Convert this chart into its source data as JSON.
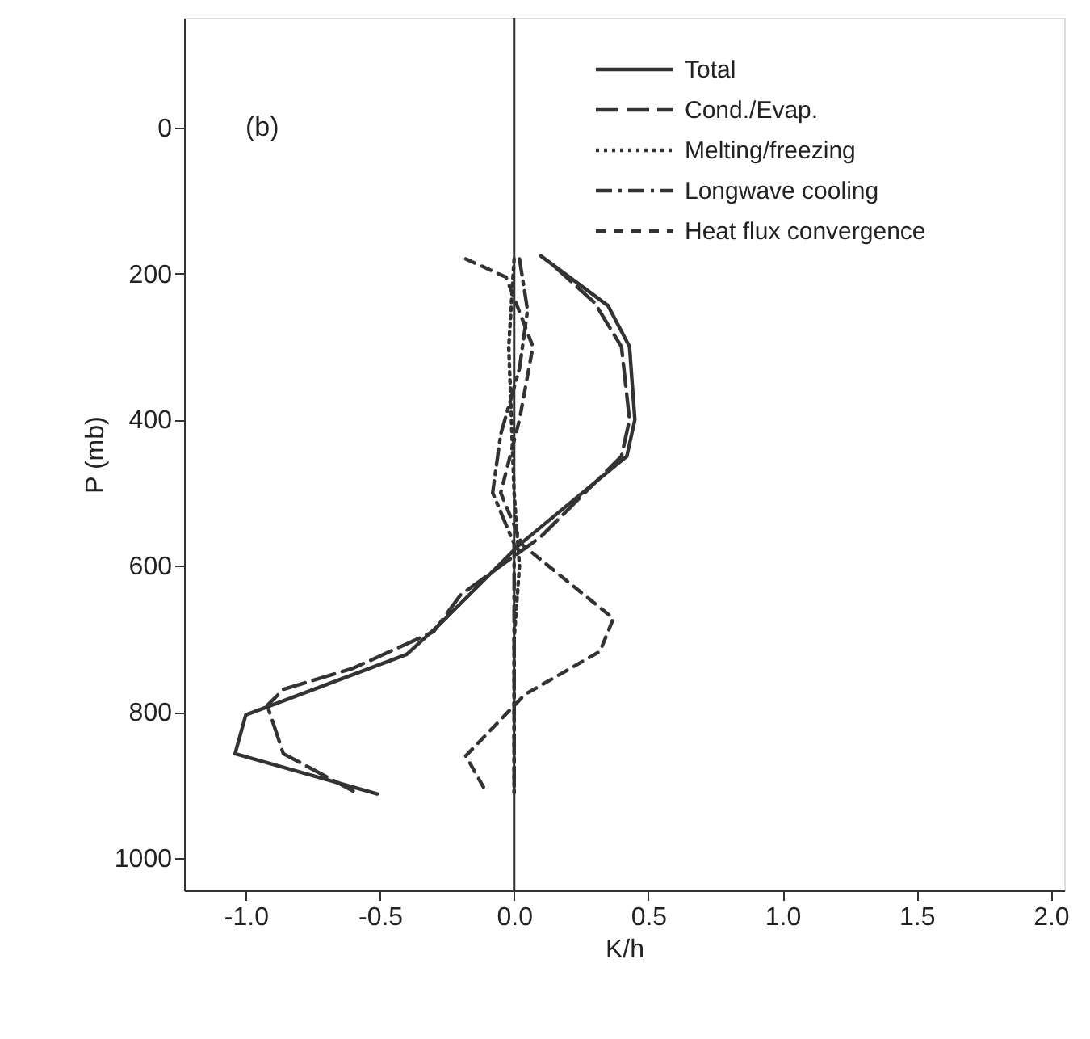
{
  "chart_data": {
    "type": "line",
    "xlabel": "K/h",
    "ylabel": "P (mb)",
    "annotations": [
      "(b)"
    ],
    "xlim": [
      -1.23,
      2.05
    ],
    "ylim": [
      1044,
      -150
    ],
    "xticks": [
      {
        "value": -1.0,
        "label": "-1.0"
      },
      {
        "value": -0.5,
        "label": "-0.5"
      },
      {
        "value": 0,
        "label": "0.0"
      },
      {
        "value": 0.5,
        "label": "0.5"
      },
      {
        "value": 1.0,
        "label": "1.0"
      },
      {
        "value": 1.5,
        "label": "1.5"
      },
      {
        "value": 2.0,
        "label": "2.0"
      }
    ],
    "yticks": [
      0,
      200,
      400,
      600,
      800,
      1000
    ],
    "grid": false,
    "legend": "top right",
    "marker": "none",
    "ref_lines": [
      {
        "axis": "x",
        "value": 0,
        "color": "#333333",
        "line_style": "solid"
      }
    ],
    "series": [
      {
        "name": "Total",
        "color": "#333333",
        "line_style": "solid",
        "x": [
          0.1,
          0.35,
          0.43,
          0.45,
          0.42,
          0.02,
          -0.28,
          -0.4,
          -1.0,
          -1.04,
          -0.51
        ],
        "values": [
          176,
          244,
          300,
          400,
          450,
          571,
          681,
          721,
          804,
          857,
          912
        ]
      },
      {
        "name": "Cond./Evap.",
        "color": "#333333",
        "line_style": "longdash",
        "x": [
          0.15,
          0.3,
          0.4,
          0.43,
          0.4,
          0.1,
          -0.2,
          -0.3,
          -0.6,
          -0.86,
          -0.92,
          -0.86,
          -0.6
        ],
        "values": [
          190,
          240,
          300,
          400,
          450,
          560,
          640,
          690,
          740,
          769,
          791,
          857,
          908
        ]
      },
      {
        "name": "Melting/freezing",
        "color": "#333333",
        "line_style": "dotted",
        "x": [
          0.0,
          -0.02,
          0.0,
          0.02,
          0.0,
          0.0,
          0.0
        ],
        "values": [
          180,
          300,
          500,
          600,
          700,
          800,
          910
        ]
      },
      {
        "name": "Longwave cooling",
        "color": "#333333",
        "line_style": "dashdot",
        "x": [
          0.02,
          0.05,
          0.02,
          -0.05,
          -0.08,
          0.0,
          0.0,
          0.0,
          0.0
        ],
        "values": [
          180,
          250,
          330,
          420,
          500,
          570,
          700,
          800,
          910
        ]
      },
      {
        "name": "Heat flux convergence",
        "color": "#333333",
        "line_style": "dashed",
        "x": [
          -0.18,
          -0.03,
          0.07,
          0.02,
          -0.05,
          0.03,
          0.37,
          0.32,
          0.04,
          -0.18,
          -0.1
        ],
        "values": [
          180,
          205,
          300,
          400,
          500,
          571,
          672,
          717,
          776,
          860,
          912
        ]
      }
    ]
  }
}
